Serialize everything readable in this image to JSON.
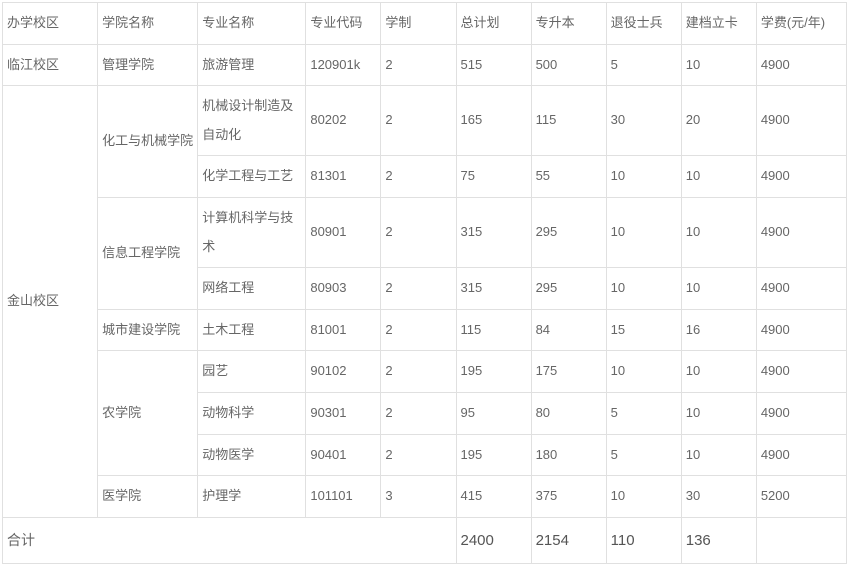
{
  "table": {
    "columns": [
      "办学校区",
      "学院名称",
      "专业名称",
      "专业代码",
      "学制",
      "总计划",
      "专升本",
      "退役士兵",
      "建档立卡",
      "学费(元/年)"
    ],
    "column_widths": [
      "95px",
      "100px",
      "108px",
      "75px",
      "75px",
      "75px",
      "75px",
      "75px",
      "75px",
      "90px"
    ],
    "rows": [
      {
        "campus": "临江校区",
        "college": "管理学院",
        "major": "旅游管理",
        "code": "120901k",
        "duration": "2",
        "total": "515",
        "zsb": "500",
        "tyb": "5",
        "jdlk": "10",
        "tuition": "4900"
      },
      {
        "campus": "金山校区",
        "college": "化工与机械学院",
        "major": "机械设计制造及自动化",
        "code": "80202",
        "duration": "2",
        "total": "165",
        "zsb": "115",
        "tyb": "30",
        "jdlk": "20",
        "tuition": "4900"
      },
      {
        "campus": "",
        "college": "",
        "major": "化学工程与工艺",
        "code": "81301",
        "duration": "2",
        "total": "75",
        "zsb": "55",
        "tyb": "10",
        "jdlk": "10",
        "tuition": "4900"
      },
      {
        "campus": "",
        "college": "信息工程学院",
        "major": "计算机科学与技术",
        "code": "80901",
        "duration": "2",
        "total": "315",
        "zsb": "295",
        "tyb": "10",
        "jdlk": "10",
        "tuition": "4900"
      },
      {
        "campus": "",
        "college": "",
        "major": "网络工程",
        "code": "80903",
        "duration": "2",
        "total": "315",
        "zsb": "295",
        "tyb": "10",
        "jdlk": "10",
        "tuition": "4900"
      },
      {
        "campus": "",
        "college": "城市建设学院",
        "major": "土木工程",
        "code": "81001",
        "duration": "2",
        "total": "115",
        "zsb": "84",
        "tyb": "15",
        "jdlk": "16",
        "tuition": "4900"
      },
      {
        "campus": "",
        "college": "农学院",
        "major": "园艺",
        "code": "90102",
        "duration": "2",
        "total": "195",
        "zsb": "175",
        "tyb": "10",
        "jdlk": "10",
        "tuition": "4900"
      },
      {
        "campus": "",
        "college": "",
        "major": "动物科学",
        "code": "90301",
        "duration": "2",
        "total": "95",
        "zsb": "80",
        "tyb": "5",
        "jdlk": "10",
        "tuition": "4900"
      },
      {
        "campus": "",
        "college": "",
        "major": "动物医学",
        "code": "90401",
        "duration": "2",
        "total": "195",
        "zsb": "180",
        "tyb": "5",
        "jdlk": "10",
        "tuition": "4900"
      },
      {
        "campus": "",
        "college": "医学院",
        "major": "护理学",
        "code": "101101",
        "duration": "3",
        "total": "415",
        "zsb": "375",
        "tyb": "10",
        "jdlk": "30",
        "tuition": "5200"
      }
    ],
    "totals": {
      "label": "合计",
      "total": "2400",
      "zsb": "2154",
      "tyb": "110",
      "jdlk": "136",
      "tuition": ""
    },
    "colors": {
      "border": "#e0e0e0",
      "text": "#666666",
      "background": "#ffffff"
    },
    "font_size_normal": 13,
    "font_size_total_label": 14,
    "font_size_total_value": 15
  }
}
